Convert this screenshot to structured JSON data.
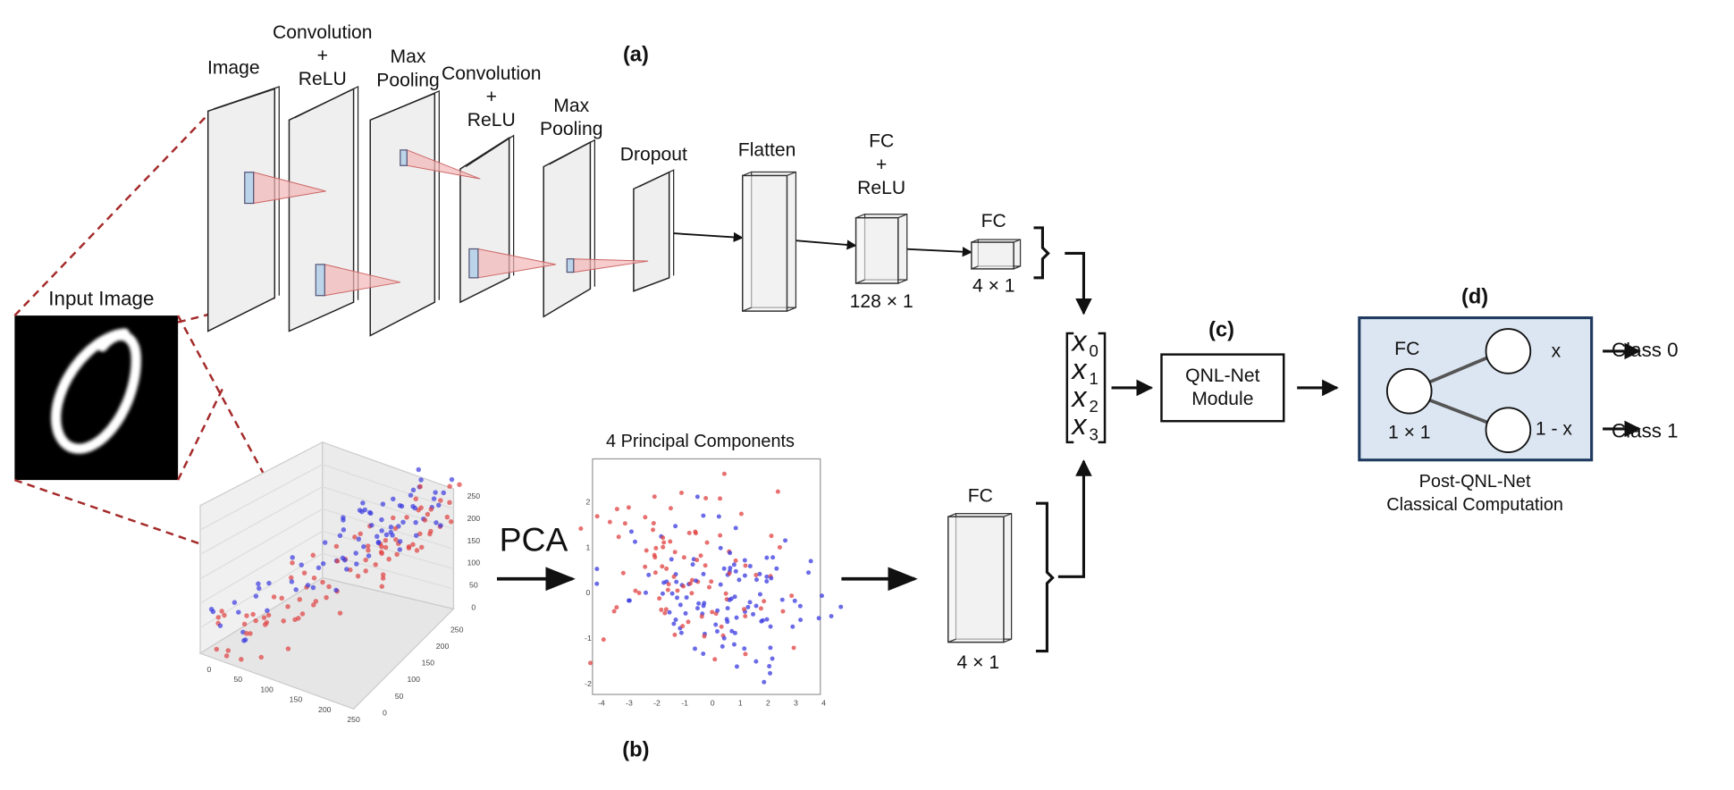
{
  "labels": {
    "panel_a": "(a)",
    "panel_b": "(b)",
    "panel_c": "(c)",
    "panel_d": "(d)",
    "input_image": "Input Image",
    "pca": "PCA",
    "pca_title": "4 Principal Components",
    "pca_fc": "FC"
  },
  "cnn_layers": [
    {
      "lines": [
        "Image"
      ]
    },
    {
      "lines": [
        "Convolution",
        "+",
        "ReLU"
      ]
    },
    {
      "lines": [
        "Max",
        "Pooling"
      ]
    },
    {
      "lines": [
        "Convolution",
        "+",
        "ReLU"
      ]
    },
    {
      "lines": [
        "Max",
        "Pooling"
      ]
    },
    {
      "lines": [
        "Dropout"
      ]
    },
    {
      "lines": [
        "Flatten"
      ]
    },
    {
      "lines": [
        "FC",
        "+",
        "ReLU"
      ]
    },
    {
      "lines": [
        "FC"
      ]
    }
  ],
  "dims": {
    "fc_relu": "128 × 1",
    "fc": "4 × 1",
    "pca_fc": "4 × 1"
  },
  "vector": [
    {
      "base": "x",
      "sub": "0"
    },
    {
      "base": "x",
      "sub": "1"
    },
    {
      "base": "x",
      "sub": "2"
    },
    {
      "base": "x",
      "sub": "3"
    }
  ],
  "qnl": {
    "lines": [
      "QNL-Net",
      "Module"
    ]
  },
  "post": {
    "fc": "FC",
    "dim": "1 × 1",
    "out0": "x",
    "out1": "1 - x",
    "classes": [
      "Class 0",
      "Class 1"
    ],
    "caption": [
      "Post-QNL-Net",
      "Classical Computation"
    ]
  },
  "plot3d": {
    "z_ticks": [
      250,
      200,
      150,
      100,
      50,
      0
    ],
    "x_ticks": [
      0,
      50,
      100,
      150,
      200,
      250
    ],
    "y_ticks": [
      250,
      200,
      150,
      100,
      50,
      0
    ]
  },
  "plot2d": {
    "x_ticks": [
      -4,
      -3,
      -2,
      -1,
      0,
      1,
      2,
      3,
      4
    ],
    "y_ticks": [
      2,
      1,
      0,
      -1,
      -2
    ]
  }
}
